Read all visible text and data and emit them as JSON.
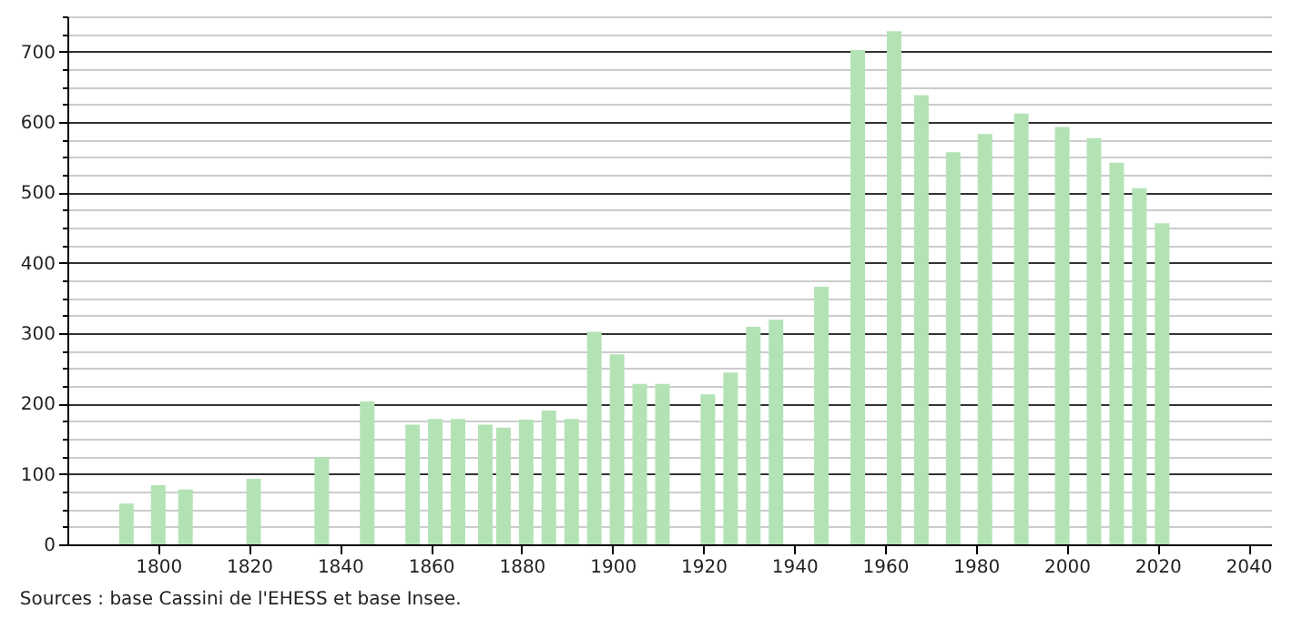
{
  "chart_data": {
    "type": "bar",
    "x": [
      1793,
      1800,
      1806,
      1821,
      1836,
      1846,
      1856,
      1861,
      1866,
      1872,
      1876,
      1881,
      1886,
      1891,
      1896,
      1901,
      1906,
      1911,
      1921,
      1926,
      1931,
      1936,
      1946,
      1954,
      1962,
      1968,
      1975,
      1982,
      1990,
      1999,
      2006,
      2011,
      2016,
      2021
    ],
    "values": [
      58,
      84,
      78,
      93,
      124,
      203,
      170,
      178,
      178,
      170,
      166,
      177,
      190,
      178,
      302,
      270,
      228,
      228,
      213,
      244,
      309,
      319,
      366,
      702,
      729,
      638,
      557,
      583,
      612,
      593,
      577,
      542,
      506,
      456
    ],
    "color": "#b3e3b5",
    "xlim": [
      1780,
      2045
    ],
    "xticks": [
      1800,
      1820,
      1840,
      1860,
      1880,
      1900,
      1920,
      1940,
      1960,
      1980,
      2000,
      2020,
      2040
    ],
    "ylim": [
      0,
      750
    ],
    "yticks": [
      0,
      {
        "value": 25,
        "label": null
      },
      {
        "value": 50,
        "label": null
      },
      {
        "value": 75,
        "label": null
      },
      100,
      {
        "value": 125,
        "label": null
      },
      {
        "value": 150,
        "label": null
      },
      {
        "value": 175,
        "label": null
      },
      200,
      {
        "value": 225,
        "label": null
      },
      {
        "value": 250,
        "label": null
      },
      {
        "value": 275,
        "label": null
      },
      300,
      {
        "value": 325,
        "label": null
      },
      {
        "value": 350,
        "label": null
      },
      {
        "value": 375,
        "label": null
      },
      400,
      {
        "value": 425,
        "label": null
      },
      {
        "value": 450,
        "label": null
      },
      {
        "value": 475,
        "label": null
      },
      500,
      {
        "value": 525,
        "label": null
      },
      {
        "value": 550,
        "label": null
      },
      {
        "value": 575,
        "label": null
      },
      600,
      {
        "value": 625,
        "label": null
      },
      {
        "value": 650,
        "label": null
      },
      {
        "value": 675,
        "label": null
      },
      700,
      {
        "value": 725,
        "label": null
      },
      {
        "value": 750,
        "label": null
      }
    ],
    "grid": "y",
    "annotations": [
      "Sources : base Cassini de l'EHESS et base Insee."
    ]
  }
}
